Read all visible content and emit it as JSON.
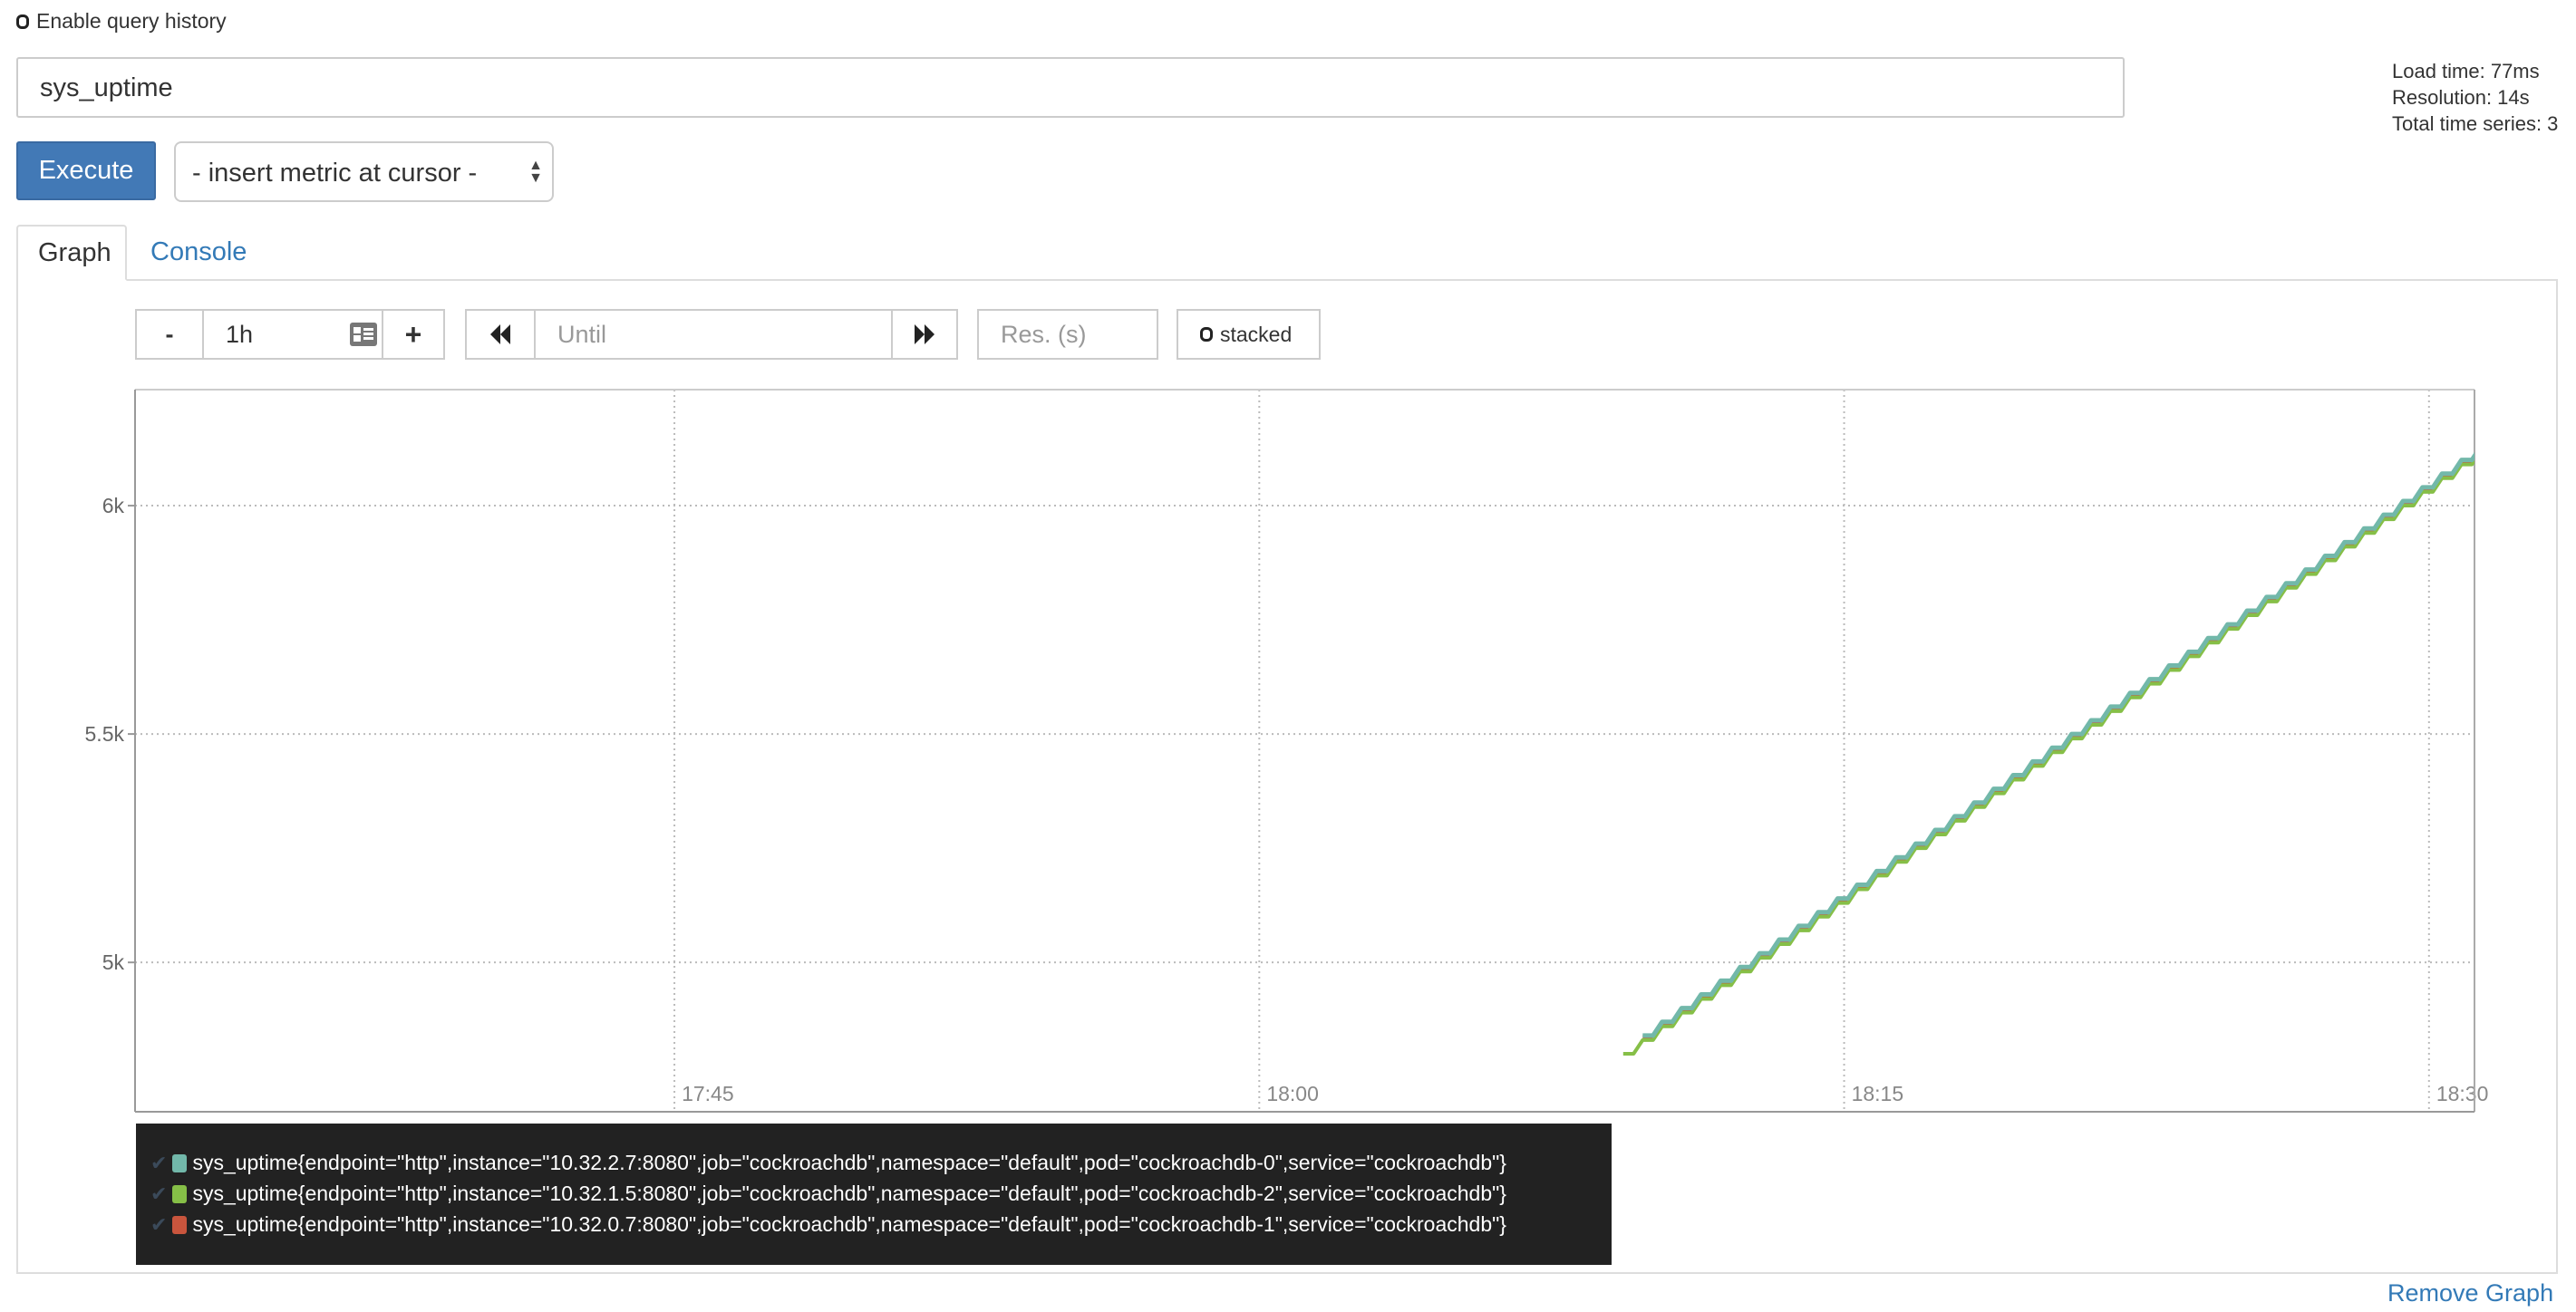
{
  "query_history": {
    "label": "Enable query history",
    "checked": false
  },
  "expression": {
    "value": "sys_uptime"
  },
  "stats": {
    "load_time": "Load time: 77ms",
    "resolution": "Resolution: 14s",
    "total_series": "Total time series: 3"
  },
  "execute_label": "Execute",
  "metric_select": {
    "selected": "- insert metric at cursor -"
  },
  "tabs": [
    {
      "label": "Graph",
      "active": true
    },
    {
      "label": "Console",
      "active": false
    }
  ],
  "controls": {
    "minus": "-",
    "range": "1h",
    "plus": "+",
    "back": "⏪",
    "until_placeholder": "Until",
    "forward": "⏩",
    "res_placeholder": "Res. (s)",
    "stacked_label": "stacked",
    "stacked_checked": false
  },
  "chart_data": {
    "type": "line",
    "step_seconds": 30,
    "xlim": [
      "17:31:10",
      "18:31:10"
    ],
    "ylim": [
      4673,
      6254
    ],
    "x_ticks": [
      "17:45",
      "18:00",
      "18:15",
      "18:30"
    ],
    "y_ticks": [
      {
        "value": 5000,
        "label": "5k"
      },
      {
        "value": 5500,
        "label": "5.5k"
      },
      {
        "value": 6000,
        "label": "6k"
      }
    ],
    "grid": true,
    "series": [
      {
        "name": "sys_uptime{endpoint=\"http\",instance=\"10.32.2.7:8080\",job=\"cockroachdb\",namespace=\"default\",pod=\"cockroachdb-0\",service=\"cockroachdb\"}",
        "color": "#72b8aa",
        "start": "18:09:50",
        "values": [
          4840,
          4870,
          4900,
          4930,
          4960,
          4990,
          5020,
          5050,
          5080,
          5110,
          5140,
          5170,
          5200,
          5230,
          5260,
          5290,
          5320,
          5350,
          5380,
          5410,
          5440,
          5470,
          5500,
          5530,
          5560,
          5590,
          5620,
          5650,
          5680,
          5710,
          5740,
          5770,
          5800,
          5830,
          5860,
          5890,
          5920,
          5950,
          5980,
          6010,
          6040,
          6070,
          6100,
          6130
        ]
      },
      {
        "name": "sys_uptime{endpoint=\"http\",instance=\"10.32.1.5:8080\",job=\"cockroachdb\",namespace=\"default\",pod=\"cockroachdb-2\",service=\"cockroachdb\"}",
        "color": "#86bf47",
        "start": "18:09:20",
        "values": [
          4800,
          4830,
          4860,
          4890,
          4920,
          4950,
          4980,
          5010,
          5040,
          5070,
          5100,
          5130,
          5160,
          5190,
          5220,
          5250,
          5280,
          5310,
          5340,
          5370,
          5400,
          5430,
          5460,
          5490,
          5520,
          5550,
          5580,
          5610,
          5640,
          5670,
          5700,
          5730,
          5760,
          5790,
          5820,
          5850,
          5880,
          5910,
          5940,
          5970,
          6000,
          6030,
          6060,
          6090,
          6120
        ]
      },
      {
        "name": "sys_uptime{endpoint=\"http\",instance=\"10.32.0.7:8080\",job=\"cockroachdb\",namespace=\"default\",pod=\"cockroachdb-1\",service=\"cockroachdb\"}",
        "color": "#c9553d",
        "start": "18:09:50",
        "values": [
          4837,
          4867,
          4897,
          4927,
          4957,
          4987,
          5017,
          5047,
          5077,
          5107,
          5137,
          5167,
          5197,
          5227,
          5257,
          5287,
          5317,
          5347,
          5377,
          5407,
          5437,
          5467,
          5497,
          5527,
          5557,
          5587,
          5617,
          5647,
          5677,
          5707,
          5737,
          5767,
          5797,
          5827,
          5857,
          5887,
          5917,
          5947,
          5977,
          6007,
          6037,
          6067,
          6097,
          6127
        ]
      }
    ]
  },
  "remove_graph": "Remove Graph"
}
